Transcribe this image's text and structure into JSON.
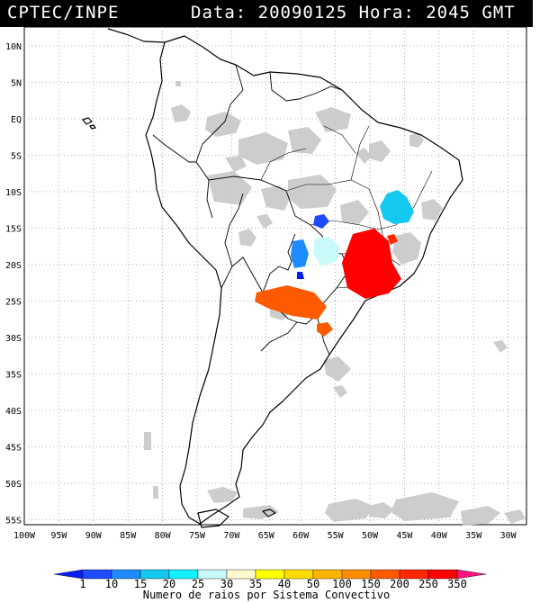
{
  "header": {
    "org": "CPTEC/INPE",
    "datetime": "Data: 20090125 Hora: 2045 GMT"
  },
  "map": {
    "lat_labels": [
      "10N",
      "5N",
      "EQ",
      "5S",
      "10S",
      "15S",
      "20S",
      "25S",
      "30S",
      "35S",
      "40S",
      "45S",
      "50S",
      "55S"
    ],
    "lon_labels": [
      "100W",
      "95W",
      "90W",
      "85W",
      "80W",
      "75W",
      "70W",
      "65W",
      "60W",
      "55W",
      "50W",
      "45W",
      "40W",
      "35W",
      "30W"
    ]
  },
  "legend": {
    "ticks": [
      "1",
      "10",
      "15",
      "20",
      "25",
      "30",
      "35",
      "40",
      "50",
      "100",
      "150",
      "200",
      "250",
      "350"
    ],
    "colors": [
      "#0a1ef0",
      "#1e4bff",
      "#1e8cff",
      "#14c8f0",
      "#14f0ff",
      "#c8fafa",
      "#fffacd",
      "#ffff00",
      "#ffdc00",
      "#ffb400",
      "#ff8c00",
      "#ff5a00",
      "#ff2800",
      "#ff0000",
      "#ff1480"
    ],
    "title": "Numero de raios por Sistema Convectivo"
  }
}
